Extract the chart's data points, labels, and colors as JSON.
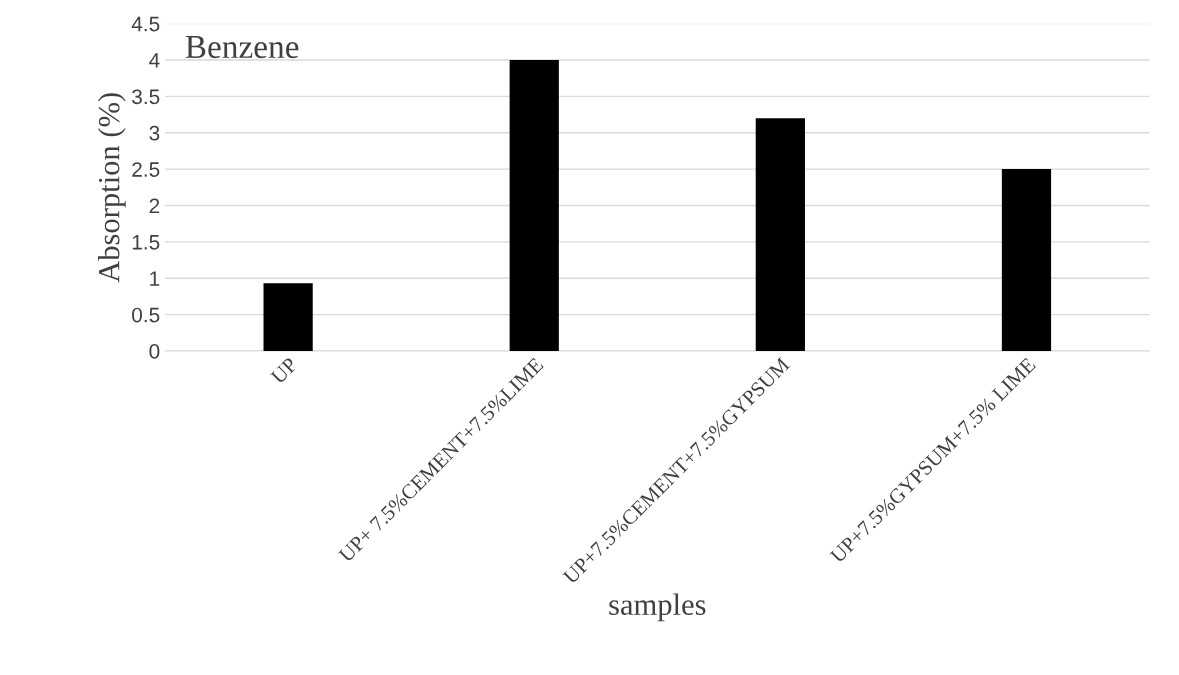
{
  "chart_data": {
    "type": "bar",
    "xlabel": "samples",
    "ylabel": "Absorption (%)",
    "categories": [
      "UP",
      "UP+ 7.5%CEMENT+7.5%LIME",
      "UP+7.5%CEMENT+7.5%GYPSUM",
      "UP+7.5%GYPSUM+7.5% LIME"
    ],
    "values": [
      0.93,
      4.0,
      3.2,
      2.5
    ],
    "color": "#000000",
    "ylim": [
      0,
      4.5
    ],
    "yticks": [
      0,
      0.5,
      1,
      1.5,
      2,
      2.5,
      3,
      3.5,
      4,
      4.5
    ],
    "grid": "y",
    "annotations": [
      "Benzene"
    ]
  }
}
